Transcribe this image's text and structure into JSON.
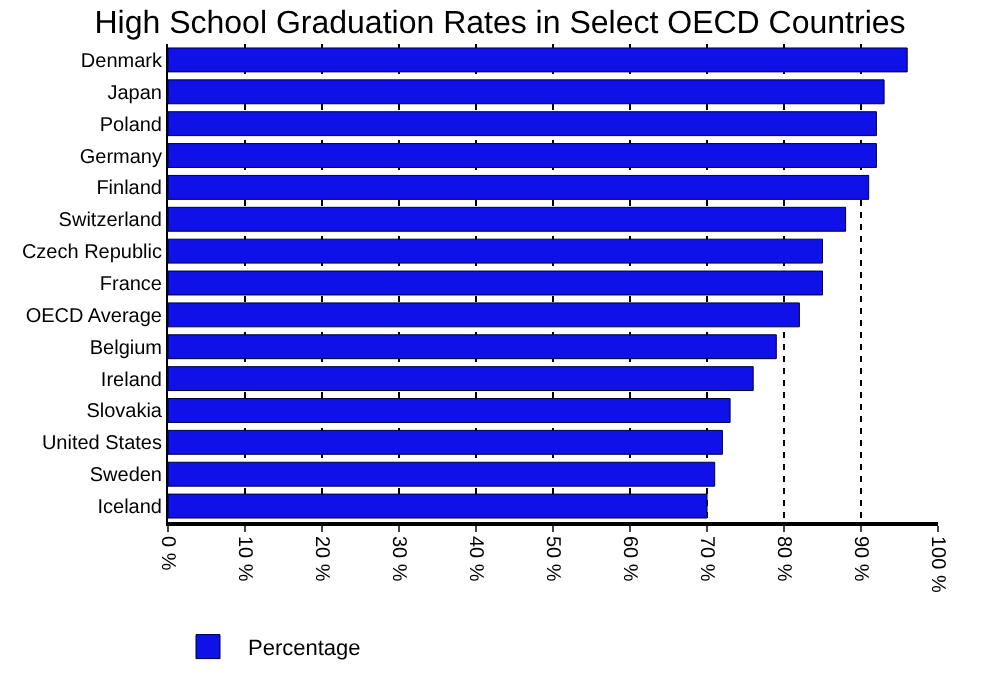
{
  "chart_data": {
    "type": "bar",
    "orientation": "horizontal",
    "title": "High School Graduation Rates in Select OECD Countries",
    "categories": [
      "Denmark",
      "Japan",
      "Poland",
      "Germany",
      "Finland",
      "Switzerland",
      "Czech Republic",
      "France",
      "OECD Average",
      "Belgium",
      "Ireland",
      "Slovakia",
      "United States",
      "Sweden",
      "Iceland"
    ],
    "series": [
      {
        "name": "Percentage",
        "color": "#1010e8",
        "values": [
          96,
          93,
          92,
          92,
          91,
          88,
          85,
          85,
          82,
          79,
          76,
          73,
          72,
          71,
          70
        ]
      }
    ],
    "xlim": [
      0,
      100
    ],
    "xticks": [
      {
        "value": 0,
        "label": "0 %"
      },
      {
        "value": 10,
        "label": "10 %"
      },
      {
        "value": 20,
        "label": "20 %"
      },
      {
        "value": 30,
        "label": "30 %"
      },
      {
        "value": 40,
        "label": "40 %"
      },
      {
        "value": 50,
        "label": "50 %"
      },
      {
        "value": 60,
        "label": "60 %"
      },
      {
        "value": 70,
        "label": "70 %"
      },
      {
        "value": 80,
        "label": "80 %"
      },
      {
        "value": 90,
        "label": "90 %"
      },
      {
        "value": 100,
        "label": "100 %"
      }
    ],
    "grid": "x",
    "legend": "bottom left"
  }
}
